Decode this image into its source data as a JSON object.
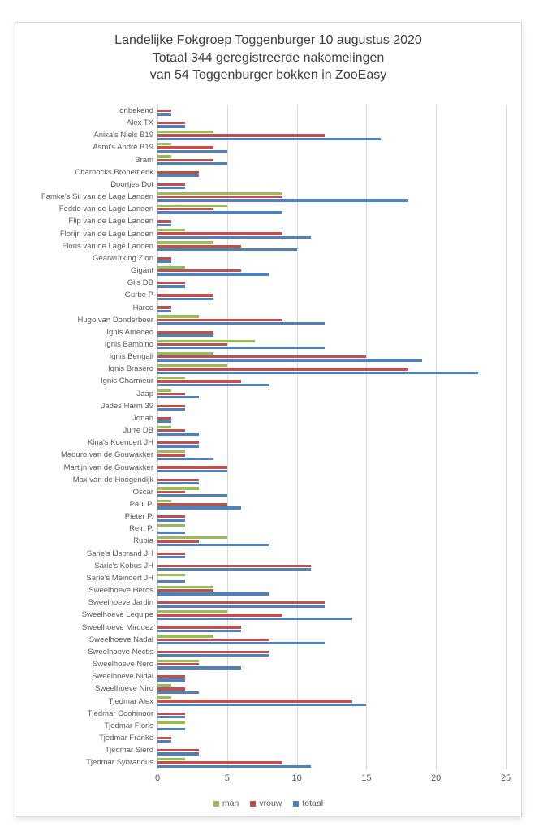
{
  "title": {
    "line1": "Landelijke Fokgroep Toggenburger 10 augustus 2020",
    "line2": "Totaal 344 geregistreerde nakomelingen",
    "line3": "van 54 Toggenburger bokken in ZooEasy"
  },
  "colors": {
    "man": "#9BBB59",
    "vrouw": "#C0504D",
    "totaal": "#4F81BD",
    "gridline": "#D9D9D9",
    "axis_text": "#595959",
    "title_text": "#404040"
  },
  "legend": [
    {
      "label": "man",
      "color": "#9BBB59"
    },
    {
      "label": "vrouw",
      "color": "#C0504D"
    },
    {
      "label": "totaal",
      "color": "#4F81BD"
    }
  ],
  "x_axis": {
    "ticks": [
      0,
      5,
      10,
      15,
      20,
      25
    ],
    "max": 25
  },
  "chart_data": {
    "type": "bar",
    "orientation": "horizontal",
    "title": "Landelijke Fokgroep Toggenburger 10 augustus 2020 — Totaal 344 geregistreerde nakomelingen van 54 Toggenburger bokken in ZooEasy",
    "xlabel": "",
    "ylabel": "",
    "xlim": [
      0,
      25
    ],
    "grid": true,
    "legend_position": "bottom",
    "categories": [
      "onbekend",
      "Alex TX",
      "Anika's Niels B19",
      "Asmi's André B19",
      "Bram",
      "Charnocks Bronemerik",
      "Doortjes Dot",
      "Famke's Sil van de Lage Landen",
      "Fedde van de Lage Landen",
      "Flip van de Lage Landen",
      "Florijn van de Lage Landen",
      "Floris van de Lage Landen",
      "Gearwurking Zion",
      "Gigant",
      "Gijs DB",
      "Gurbe P",
      "Harco",
      "Hugo van Donderboer",
      "Ignis Amedeo",
      "Ignis Bambino",
      "Ignis Bengali",
      "Ignis Brasero",
      "Ignis Charmeur",
      "Jaap",
      "Jades Harm 39",
      "Jonah",
      "Jurre DB",
      "Kina's Koendert JH",
      "Maduro van de Gouwakker",
      "Martijn van de Gouwakker",
      "Max van de Hoogendijk",
      "Oscar",
      "Paul P.",
      "Pieter P.",
      "Rein P.",
      "Rubia",
      "Sarie's IJsbrand JH",
      "Sarie's Kobus JH",
      "Sarie's Meindert JH",
      "Sweelhoeve Heros",
      "Sweelhoeve Jardin",
      "Sweelhoeve Lequipe",
      "Sweelhoeve Mirquez",
      "Sweelhoeve Nadal",
      "Sweelhoeve Nectis",
      "Sweelhoeve Nero",
      "Sweelhoeve Nidal",
      "Sweelhoeve Niro",
      "Tjedmar Alex",
      "Tjedmar Coohinoor",
      "Tjedmar Floris",
      "Tjedmar Franke",
      "Tjedmar Sierd",
      "Tjedmar Sybrandus"
    ],
    "series": [
      {
        "name": "man",
        "color": "#9BBB59",
        "values": [
          0,
          0,
          4,
          1,
          1,
          0,
          0,
          9,
          5,
          0,
          2,
          4,
          0,
          2,
          0,
          0,
          0,
          3,
          0,
          7,
          4,
          5,
          2,
          1,
          0,
          0,
          1,
          0,
          2,
          0,
          0,
          3,
          1,
          0,
          2,
          5,
          0,
          0,
          2,
          4,
          0,
          5,
          0,
          4,
          0,
          3,
          0,
          1,
          1,
          0,
          2,
          0,
          0,
          2
        ]
      },
      {
        "name": "vrouw",
        "color": "#C0504D",
        "values": [
          1,
          2,
          12,
          4,
          4,
          3,
          2,
          9,
          4,
          1,
          9,
          6,
          1,
          6,
          2,
          4,
          1,
          9,
          4,
          5,
          15,
          18,
          6,
          2,
          2,
          1,
          2,
          3,
          2,
          5,
          3,
          2,
          5,
          2,
          0,
          3,
          2,
          11,
          0,
          4,
          12,
          9,
          6,
          8,
          8,
          3,
          2,
          2,
          14,
          2,
          0,
          1,
          3,
          9
        ]
      },
      {
        "name": "totaal",
        "color": "#4F81BD",
        "values": [
          1,
          2,
          16,
          5,
          5,
          3,
          2,
          18,
          9,
          1,
          11,
          10,
          1,
          8,
          2,
          4,
          1,
          12,
          4,
          12,
          19,
          23,
          8,
          3,
          2,
          1,
          3,
          3,
          4,
          5,
          3,
          5,
          6,
          2,
          2,
          8,
          2,
          11,
          2,
          8,
          12,
          14,
          6,
          12,
          8,
          6,
          2,
          3,
          15,
          2,
          2,
          1,
          3,
          11
        ]
      }
    ]
  }
}
